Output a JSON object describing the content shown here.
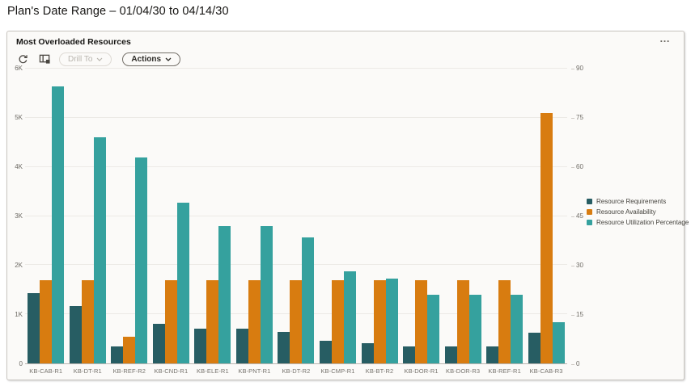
{
  "page": {
    "title": "Plan's Date Range – 01/04/30 to 04/14/30"
  },
  "panel": {
    "title": "Most Overloaded Resources",
    "menu_label": "…"
  },
  "toolbar": {
    "drill_to_label": "Drill To",
    "actions_label": "Actions"
  },
  "chart_data": {
    "type": "bar",
    "title": "Most Overloaded Resources",
    "categories": [
      "KB-CAB-R1",
      "KB-DT-R1",
      "KB-REF-R2",
      "KB-CND-R1",
      "KB-ELE-R1",
      "KB-PNT-R1",
      "KB-DT-R2",
      "KB-CMP-R1",
      "KB-BT-R2",
      "KB-DOR-R1",
      "KB-DOR-R3",
      "KB-REF-R1",
      "KB-CAB-R3"
    ],
    "series": [
      {
        "name": "Resource Requirements",
        "axis": "left",
        "color": "#275d63",
        "values": [
          1425,
          1175,
          350,
          800,
          700,
          700,
          640,
          460,
          410,
          350,
          350,
          350,
          625
        ]
      },
      {
        "name": "Resource Availability",
        "axis": "left",
        "color": "#d87c10",
        "values": [
          1700,
          1700,
          550,
          1700,
          1700,
          1700,
          1700,
          1700,
          1700,
          1700,
          1700,
          1700,
          5100
        ]
      },
      {
        "name": "Resource Utilization Percentage",
        "axis": "right",
        "color": "#35a19e",
        "values": [
          84.5,
          69,
          63,
          49,
          42,
          42,
          38.5,
          28,
          26,
          21,
          21,
          21,
          12.5
        ]
      }
    ],
    "left_axis": {
      "min": 0,
      "max": 6000,
      "ticks": [
        "0",
        "1K",
        "2K",
        "3K",
        "4K",
        "5K",
        "6K"
      ]
    },
    "right_axis": {
      "min": 0,
      "max": 90,
      "ticks": [
        "0",
        "15",
        "30",
        "45",
        "60",
        "75",
        "90"
      ]
    },
    "grid": true,
    "legend_position": "right"
  }
}
